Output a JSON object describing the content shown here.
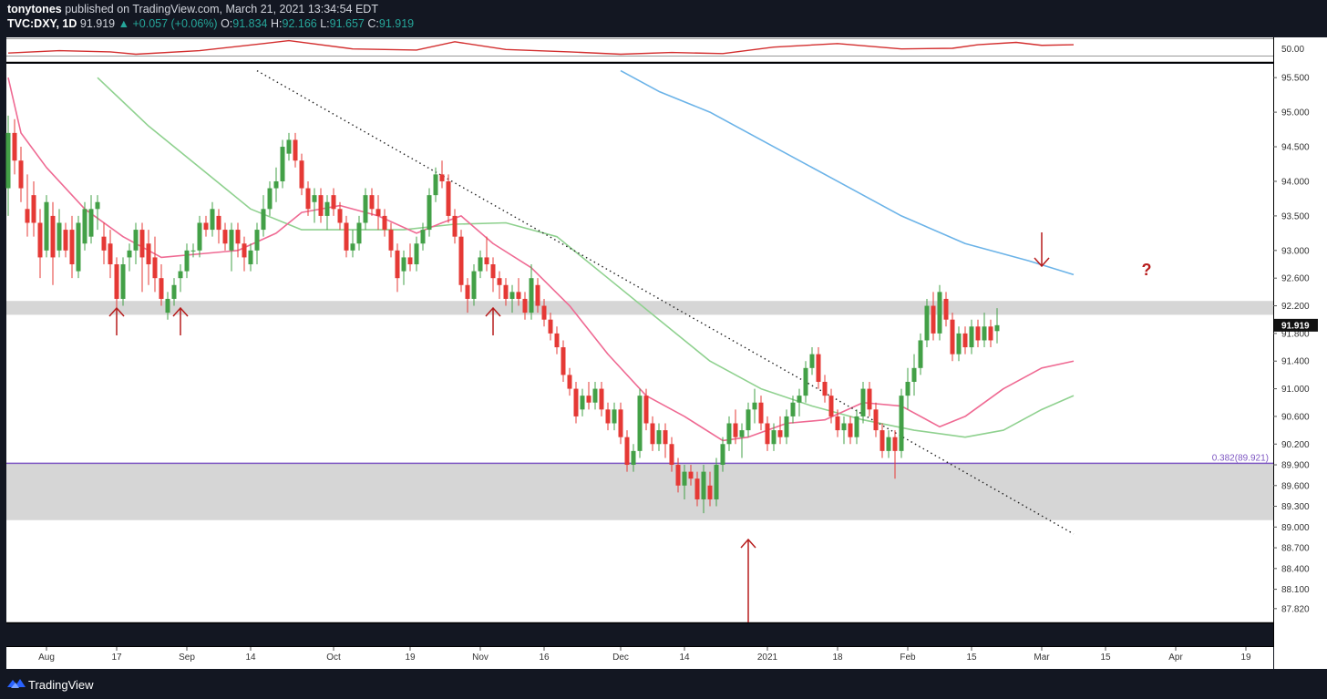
{
  "header": {
    "author": "tonytones",
    "published": "published on TradingView.com, March 21, 2021 13:34:54 EDT",
    "symbol": "TVC:DXY, 1D",
    "price": "91.919",
    "change": "+0.057 (+0.06%)",
    "o_label": "O:",
    "o_value": "91.834",
    "h_label": "H:",
    "h_value": "92.166",
    "l_label": "L:",
    "l_value": "91.657",
    "c_label": "C:",
    "c_value": "91.919"
  },
  "footer": {
    "brand": "TradingView"
  },
  "colors": {
    "background": "#ffffff",
    "up_candle": "#43a047",
    "down_candle": "#e53935",
    "ma_short": "#ef6a93",
    "ma_mid": "#8fd18f",
    "ma_long": "#6bb3e8",
    "fib_line": "#7e57c2",
    "zone": "#d6d6d6",
    "arrow": "#b71c1c",
    "rsi": "#d32f2f"
  },
  "chart_data": {
    "type": "candlestick",
    "title": "",
    "x_ticks": [
      "Aug",
      "17",
      "Sep",
      "14",
      "Oct",
      "19",
      "Nov",
      "16",
      "Dec",
      "14",
      "2021",
      "18",
      "Feb",
      "15",
      "Mar",
      "15",
      "Apr",
      "19"
    ],
    "y_ticks": [
      "95.500",
      "95.000",
      "94.500",
      "94.000",
      "93.500",
      "93.000",
      "92.600",
      "92.200",
      "91.800",
      "91.400",
      "91.000",
      "90.600",
      "90.200",
      "89.900",
      "89.600",
      "89.300",
      "89.000",
      "88.700",
      "88.400",
      "88.100",
      "87.820"
    ],
    "ylim": [
      87.62,
      95.7
    ],
    "last_price_label": "91.919",
    "fib_level": {
      "value": 89.921,
      "label": "0.382(89.921)"
    },
    "resistance_zone": [
      92.07,
      92.27
    ],
    "support_zone": [
      89.1,
      89.92
    ],
    "question_mark": "?",
    "indicator": {
      "axis_label": "50.00",
      "level": 50.0
    },
    "candles": [
      [
        93.9,
        94.95,
        93.5,
        94.7
      ],
      [
        94.7,
        94.9,
        94.1,
        94.3
      ],
      [
        94.3,
        94.5,
        93.7,
        93.9
      ],
      [
        93.6,
        94.1,
        93.2,
        93.4
      ],
      [
        93.8,
        94.0,
        93.2,
        93.4
      ],
      [
        93.4,
        93.6,
        92.6,
        92.9
      ],
      [
        93.0,
        93.8,
        92.9,
        93.7
      ],
      [
        93.5,
        93.7,
        92.5,
        92.9
      ],
      [
        93.0,
        93.6,
        92.9,
        93.4
      ],
      [
        93.3,
        93.4,
        92.9,
        93.0
      ],
      [
        93.3,
        93.5,
        92.6,
        92.8
      ],
      [
        92.7,
        93.5,
        92.6,
        93.4
      ],
      [
        93.1,
        93.7,
        93.0,
        93.6
      ],
      [
        93.2,
        93.8,
        93.1,
        93.6
      ],
      [
        93.6,
        93.8,
        93.3,
        93.7
      ],
      [
        93.2,
        93.4,
        92.8,
        93.0
      ],
      [
        93.1,
        93.3,
        92.6,
        92.8
      ],
      [
        92.8,
        92.9,
        92.1,
        92.3
      ],
      [
        92.3,
        92.9,
        92.2,
        92.8
      ],
      [
        92.9,
        93.1,
        92.7,
        93.0
      ],
      [
        93.0,
        93.4,
        92.8,
        93.3
      ],
      [
        93.3,
        93.4,
        92.4,
        92.9
      ],
      [
        93.1,
        93.3,
        92.5,
        92.8
      ],
      [
        92.9,
        93.2,
        92.4,
        92.6
      ],
      [
        92.6,
        92.8,
        92.2,
        92.3
      ],
      [
        92.1,
        92.4,
        92.0,
        92.3
      ],
      [
        92.3,
        92.6,
        92.2,
        92.5
      ],
      [
        92.6,
        92.8,
        92.4,
        92.7
      ],
      [
        92.7,
        93.1,
        92.6,
        93.0
      ],
      [
        93.0,
        93.1,
        92.9,
        93.0
      ],
      [
        93.0,
        93.5,
        92.9,
        93.4
      ],
      [
        93.4,
        93.5,
        93.2,
        93.3
      ],
      [
        93.3,
        93.7,
        93.2,
        93.6
      ],
      [
        93.5,
        93.6,
        93.1,
        93.3
      ],
      [
        93.3,
        93.4,
        93.0,
        93.1
      ],
      [
        93.0,
        93.4,
        92.7,
        93.3
      ],
      [
        93.3,
        93.4,
        92.9,
        93.1
      ],
      [
        93.1,
        93.2,
        92.7,
        92.9
      ],
      [
        92.8,
        93.1,
        92.7,
        93.0
      ],
      [
        93.0,
        93.4,
        92.8,
        93.3
      ],
      [
        93.3,
        93.8,
        93.2,
        93.6
      ],
      [
        93.6,
        94.0,
        93.5,
        93.9
      ],
      [
        93.9,
        94.2,
        93.7,
        94.0
      ],
      [
        94.0,
        94.6,
        93.9,
        94.5
      ],
      [
        94.4,
        94.7,
        94.3,
        94.6
      ],
      [
        94.6,
        94.7,
        94.2,
        94.3
      ],
      [
        94.3,
        94.4,
        93.8,
        93.9
      ],
      [
        93.9,
        94.0,
        93.5,
        93.6
      ],
      [
        93.7,
        93.9,
        93.4,
        93.8
      ],
      [
        93.8,
        93.9,
        93.4,
        93.5
      ],
      [
        93.5,
        93.8,
        93.3,
        93.7
      ],
      [
        93.8,
        93.9,
        93.5,
        93.6
      ],
      [
        93.6,
        93.7,
        93.3,
        93.4
      ],
      [
        93.4,
        93.5,
        92.9,
        93.0
      ],
      [
        93.0,
        93.3,
        92.9,
        93.1
      ],
      [
        93.1,
        93.5,
        93.0,
        93.4
      ],
      [
        93.4,
        93.9,
        93.3,
        93.8
      ],
      [
        93.8,
        93.9,
        93.5,
        93.6
      ],
      [
        93.6,
        93.8,
        93.3,
        93.5
      ],
      [
        93.5,
        93.6,
        93.2,
        93.3
      ],
      [
        93.3,
        93.4,
        92.9,
        93.0
      ],
      [
        93.0,
        93.1,
        92.4,
        92.6
      ],
      [
        92.7,
        93.0,
        92.5,
        92.9
      ],
      [
        92.9,
        93.1,
        92.7,
        92.8
      ],
      [
        92.8,
        93.2,
        92.7,
        93.1
      ],
      [
        93.1,
        93.4,
        93.0,
        93.3
      ],
      [
        93.3,
        93.9,
        93.2,
        93.8
      ],
      [
        93.8,
        94.2,
        93.7,
        94.1
      ],
      [
        94.1,
        94.3,
        93.9,
        94.0
      ],
      [
        94.0,
        94.1,
        93.4,
        93.5
      ],
      [
        93.5,
        93.6,
        93.1,
        93.2
      ],
      [
        93.2,
        93.3,
        92.4,
        92.5
      ],
      [
        92.5,
        92.6,
        92.1,
        92.3
      ],
      [
        92.3,
        92.8,
        92.2,
        92.7
      ],
      [
        92.7,
        93.0,
        92.6,
        92.9
      ],
      [
        92.9,
        93.2,
        92.7,
        92.8
      ],
      [
        92.8,
        92.9,
        92.4,
        92.6
      ],
      [
        92.6,
        92.7,
        92.3,
        92.5
      ],
      [
        92.5,
        92.6,
        92.2,
        92.3
      ],
      [
        92.3,
        92.5,
        92.1,
        92.4
      ],
      [
        92.4,
        92.6,
        92.2,
        92.3
      ],
      [
        92.3,
        92.4,
        92.0,
        92.1
      ],
      [
        92.1,
        92.8,
        92.0,
        92.6
      ],
      [
        92.5,
        92.6,
        92.1,
        92.2
      ],
      [
        92.2,
        92.3,
        91.9,
        92.0
      ],
      [
        92.0,
        92.1,
        91.7,
        91.8
      ],
      [
        91.8,
        91.9,
        91.5,
        91.6
      ],
      [
        91.6,
        91.7,
        91.1,
        91.2
      ],
      [
        91.2,
        91.3,
        90.9,
        91.0
      ],
      [
        91.0,
        91.1,
        90.5,
        90.6
      ],
      [
        90.7,
        91.0,
        90.6,
        90.9
      ],
      [
        90.9,
        91.1,
        90.7,
        90.8
      ],
      [
        90.8,
        91.1,
        90.7,
        91.0
      ],
      [
        91.0,
        91.1,
        90.6,
        90.7
      ],
      [
        90.7,
        90.8,
        90.4,
        90.5
      ],
      [
        90.5,
        90.8,
        90.4,
        90.7
      ],
      [
        90.7,
        90.8,
        90.2,
        90.3
      ],
      [
        90.3,
        90.4,
        89.8,
        89.9
      ],
      [
        89.9,
        90.2,
        89.8,
        90.1
      ],
      [
        90.1,
        91.0,
        90.0,
        90.9
      ],
      [
        90.9,
        91.0,
        90.4,
        90.5
      ],
      [
        90.5,
        90.6,
        90.1,
        90.2
      ],
      [
        90.2,
        90.5,
        90.1,
        90.4
      ],
      [
        90.4,
        90.5,
        90.0,
        90.2
      ],
      [
        90.2,
        90.3,
        89.8,
        89.9
      ],
      [
        89.9,
        90.0,
        89.5,
        89.6
      ],
      [
        89.6,
        89.9,
        89.4,
        89.8
      ],
      [
        89.8,
        89.9,
        89.6,
        89.7
      ],
      [
        89.7,
        89.8,
        89.3,
        89.4
      ],
      [
        89.4,
        89.9,
        89.2,
        89.8
      ],
      [
        89.6,
        89.8,
        89.3,
        89.4
      ],
      [
        89.4,
        90.0,
        89.3,
        89.9
      ],
      [
        89.9,
        90.3,
        89.8,
        90.2
      ],
      [
        90.2,
        90.6,
        90.1,
        90.5
      ],
      [
        90.5,
        90.7,
        90.2,
        90.3
      ],
      [
        90.3,
        90.5,
        90.0,
        90.4
      ],
      [
        90.4,
        90.8,
        90.3,
        90.7
      ],
      [
        90.7,
        91.0,
        90.5,
        90.8
      ],
      [
        90.8,
        90.9,
        90.4,
        90.5
      ],
      [
        90.5,
        90.6,
        90.1,
        90.2
      ],
      [
        90.2,
        90.5,
        90.1,
        90.4
      ],
      [
        90.4,
        90.6,
        90.2,
        90.3
      ],
      [
        90.3,
        90.7,
        90.2,
        90.6
      ],
      [
        90.6,
        90.9,
        90.5,
        90.8
      ],
      [
        90.8,
        91.0,
        90.6,
        90.9
      ],
      [
        90.9,
        91.4,
        90.8,
        91.3
      ],
      [
        91.3,
        91.6,
        91.2,
        91.5
      ],
      [
        91.5,
        91.6,
        91.0,
        91.1
      ],
      [
        91.1,
        91.2,
        90.8,
        90.9
      ],
      [
        90.9,
        91.0,
        90.5,
        90.6
      ],
      [
        90.6,
        90.7,
        90.3,
        90.4
      ],
      [
        90.4,
        90.6,
        90.2,
        90.5
      ],
      [
        90.5,
        90.6,
        90.2,
        90.3
      ],
      [
        90.3,
        90.7,
        90.2,
        90.6
      ],
      [
        90.6,
        91.1,
        90.5,
        91.0
      ],
      [
        91.0,
        91.1,
        90.6,
        90.7
      ],
      [
        90.7,
        90.8,
        90.3,
        90.4
      ],
      [
        90.4,
        90.5,
        90.0,
        90.1
      ],
      [
        90.1,
        90.4,
        90.0,
        90.3
      ],
      [
        90.3,
        90.4,
        89.7,
        90.1
      ],
      [
        90.1,
        91.0,
        90.0,
        90.9
      ],
      [
        90.9,
        91.3,
        90.7,
        91.1
      ],
      [
        91.1,
        91.5,
        90.9,
        91.3
      ],
      [
        91.3,
        91.8,
        91.2,
        91.7
      ],
      [
        91.7,
        92.3,
        91.6,
        92.2
      ],
      [
        92.2,
        92.4,
        91.7,
        91.8
      ],
      [
        91.8,
        92.5,
        91.7,
        92.4
      ],
      [
        92.3,
        92.4,
        91.9,
        92.0
      ],
      [
        92.0,
        92.1,
        91.4,
        91.5
      ],
      [
        91.5,
        91.9,
        91.4,
        91.8
      ],
      [
        91.8,
        91.9,
        91.5,
        91.6
      ],
      [
        91.6,
        92.0,
        91.5,
        91.9
      ],
      [
        91.9,
        92.0,
        91.6,
        91.7
      ],
      [
        91.7,
        92.1,
        91.6,
        91.9
      ],
      [
        91.9,
        92.0,
        91.6,
        91.7
      ],
      [
        91.834,
        92.166,
        91.657,
        91.919
      ]
    ],
    "sma_short": [
      [
        0,
        95.5
      ],
      [
        2,
        94.7
      ],
      [
        6,
        94.2
      ],
      [
        12,
        93.6
      ],
      [
        18,
        93.2
      ],
      [
        24,
        92.9
      ],
      [
        30,
        92.95
      ],
      [
        36,
        93.0
      ],
      [
        42,
        93.25
      ],
      [
        46,
        93.55
      ],
      [
        52,
        93.65
      ],
      [
        58,
        93.5
      ],
      [
        64,
        93.25
      ],
      [
        68,
        93.4
      ],
      [
        71,
        93.5
      ],
      [
        76,
        93.1
      ],
      [
        82,
        92.75
      ],
      [
        88,
        92.2
      ],
      [
        94,
        91.5
      ],
      [
        100,
        90.9
      ],
      [
        106,
        90.6
      ],
      [
        112,
        90.25
      ],
      [
        116,
        90.3
      ],
      [
        122,
        90.5
      ],
      [
        128,
        90.55
      ],
      [
        134,
        90.8
      ],
      [
        140,
        90.75
      ],
      [
        146,
        90.45
      ],
      [
        150,
        90.6
      ],
      [
        156,
        91.0
      ],
      [
        162,
        91.3
      ],
      [
        167,
        91.4
      ]
    ],
    "sma_mid": [
      [
        14,
        95.5
      ],
      [
        22,
        94.8
      ],
      [
        30,
        94.2
      ],
      [
        38,
        93.6
      ],
      [
        46,
        93.3
      ],
      [
        54,
        93.3
      ],
      [
        62,
        93.3
      ],
      [
        70,
        93.38
      ],
      [
        78,
        93.4
      ],
      [
        86,
        93.2
      ],
      [
        94,
        92.6
      ],
      [
        102,
        92.0
      ],
      [
        110,
        91.4
      ],
      [
        118,
        91.0
      ],
      [
        126,
        90.75
      ],
      [
        134,
        90.55
      ],
      [
        142,
        90.4
      ],
      [
        150,
        90.3
      ],
      [
        156,
        90.4
      ],
      [
        162,
        90.7
      ],
      [
        167,
        90.9
      ]
    ],
    "sma_long": [
      [
        96,
        95.6
      ],
      [
        102,
        95.3
      ],
      [
        110,
        95.0
      ],
      [
        120,
        94.5
      ],
      [
        130,
        94.0
      ],
      [
        140,
        93.5
      ],
      [
        150,
        93.1
      ],
      [
        160,
        92.85
      ],
      [
        167,
        92.65
      ]
    ],
    "trendline": {
      "from": [
        39,
        95.6
      ],
      "to": [
        167,
        88.9
      ]
    },
    "rsi": [
      [
        0,
        49.2
      ],
      [
        8,
        49.6
      ],
      [
        16,
        49.4
      ],
      [
        20,
        49.0
      ],
      [
        30,
        49.6
      ],
      [
        40,
        50.8
      ],
      [
        44,
        51.3
      ],
      [
        54,
        49.9
      ],
      [
        64,
        49.7
      ],
      [
        70,
        51.1
      ],
      [
        78,
        49.8
      ],
      [
        88,
        49.4
      ],
      [
        96,
        49.0
      ],
      [
        104,
        49.3
      ],
      [
        112,
        49.1
      ],
      [
        120,
        50.2
      ],
      [
        130,
        50.8
      ],
      [
        140,
        49.9
      ],
      [
        148,
        50.0
      ],
      [
        152,
        50.6
      ],
      [
        158,
        51.0
      ],
      [
        162,
        50.5
      ],
      [
        167,
        50.6
      ]
    ],
    "arrows_up": [
      {
        "bar": 17,
        "size": "small"
      },
      {
        "bar": 27,
        "size": "small"
      },
      {
        "bar": 76,
        "size": "small"
      },
      {
        "bar": 116,
        "size": "large"
      }
    ],
    "arrows_down": [
      {
        "bar": 162
      }
    ]
  }
}
